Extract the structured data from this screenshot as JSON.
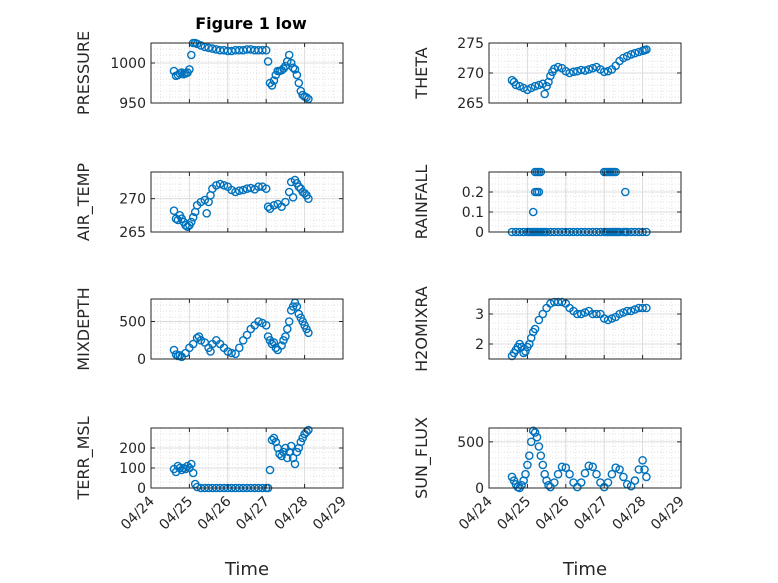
{
  "figure_title": "Figure 1 low",
  "marker_color": "#0072BD",
  "grid": true,
  "chart_data": [
    {
      "type": "scatter",
      "title": "Figure 1 low",
      "ylabel": "PRESSURE",
      "ylim": [
        950,
        1025
      ],
      "yticks": [
        950,
        1000
      ],
      "xlim": [
        0,
        5
      ],
      "xtick_labels": [
        "04/24",
        "04/25",
        "04/26",
        "04/27",
        "04/28",
        "04/29"
      ],
      "x": [
        0.6,
        0.65,
        0.7,
        0.75,
        0.8,
        0.85,
        0.9,
        0.95,
        1.0,
        1.05,
        1.1,
        1.15,
        1.2,
        1.3,
        1.4,
        1.5,
        1.6,
        1.7,
        1.8,
        1.9,
        2.0,
        2.1,
        2.2,
        2.3,
        2.4,
        2.5,
        2.6,
        2.7,
        2.8,
        2.9,
        3.0,
        3.05,
        3.1,
        3.15,
        3.2,
        3.25,
        3.3,
        3.35,
        3.4,
        3.45,
        3.5,
        3.55,
        3.6,
        3.65,
        3.7,
        3.75,
        3.8,
        3.85,
        3.9,
        3.95,
        4.0,
        4.05,
        4.1
      ],
      "y": [
        990,
        984,
        985,
        987,
        988,
        986,
        987,
        988,
        992,
        1010,
        1025,
        1025,
        1024,
        1022,
        1020,
        1019,
        1018,
        1017,
        1016,
        1016,
        1015,
        1015,
        1016,
        1016,
        1016,
        1017,
        1017,
        1016,
        1016,
        1016,
        1016,
        1002,
        975,
        972,
        978,
        985,
        990,
        990,
        991,
        993,
        996,
        1002,
        1010,
        1000,
        994,
        992,
        985,
        975,
        965,
        960,
        958,
        957,
        955
      ]
    },
    {
      "type": "scatter",
      "ylabel": "THETA",
      "ylim": [
        265,
        275
      ],
      "yticks": [
        265,
        270,
        275
      ],
      "xlim": [
        0,
        5
      ],
      "xtick_labels": [
        "04/24",
        "04/25",
        "04/26",
        "04/27",
        "04/28",
        "04/29"
      ],
      "x": [
        0.6,
        0.65,
        0.7,
        0.8,
        0.9,
        1.0,
        1.1,
        1.2,
        1.3,
        1.4,
        1.45,
        1.5,
        1.55,
        1.6,
        1.65,
        1.7,
        1.8,
        1.9,
        2.0,
        2.1,
        2.2,
        2.3,
        2.4,
        2.5,
        2.6,
        2.7,
        2.8,
        2.9,
        3.0,
        3.1,
        3.2,
        3.3,
        3.4,
        3.5,
        3.6,
        3.7,
        3.8,
        3.9,
        4.0,
        4.05,
        4.1
      ],
      "y": [
        268.8,
        268.5,
        268.0,
        267.8,
        267.5,
        267.2,
        267.5,
        267.8,
        268.0,
        268.2,
        266.5,
        267.8,
        268.5,
        269.5,
        270.2,
        270.7,
        271.0,
        270.8,
        270.3,
        270.0,
        270.2,
        270.3,
        270.5,
        270.4,
        270.6,
        270.8,
        271.0,
        270.6,
        270.2,
        270.3,
        270.6,
        271.2,
        272.0,
        272.5,
        272.8,
        273.1,
        273.3,
        273.5,
        273.7,
        273.8,
        273.9
      ]
    },
    {
      "type": "scatter",
      "ylabel": "AIR_TEMP",
      "ylim": [
        265,
        274
      ],
      "yticks": [
        265,
        270
      ],
      "xlim": [
        0,
        5
      ],
      "xtick_labels": [
        "04/24",
        "04/25",
        "04/26",
        "04/27",
        "04/28",
        "04/29"
      ],
      "x": [
        0.6,
        0.65,
        0.7,
        0.75,
        0.8,
        0.85,
        0.9,
        0.95,
        1.0,
        1.05,
        1.1,
        1.15,
        1.2,
        1.3,
        1.4,
        1.45,
        1.5,
        1.55,
        1.6,
        1.7,
        1.8,
        1.9,
        2.0,
        2.1,
        2.2,
        2.3,
        2.4,
        2.5,
        2.6,
        2.7,
        2.8,
        2.9,
        3.0,
        3.05,
        3.1,
        3.2,
        3.3,
        3.4,
        3.5,
        3.6,
        3.65,
        3.7,
        3.75,
        3.8,
        3.85,
        3.9,
        3.95,
        4.0,
        4.05,
        4.1
      ],
      "y": [
        268.2,
        267.0,
        266.8,
        267.5,
        267.0,
        266.5,
        266.0,
        265.8,
        266.0,
        266.5,
        267.2,
        268.0,
        269.0,
        269.5,
        269.8,
        267.8,
        269.5,
        270.5,
        271.5,
        272.0,
        272.2,
        272.0,
        271.8,
        271.3,
        271.0,
        271.2,
        271.3,
        271.5,
        271.6,
        271.4,
        271.8,
        271.8,
        271.5,
        268.8,
        268.5,
        269.0,
        269.2,
        268.8,
        269.5,
        271.0,
        272.5,
        270.2,
        272.8,
        272.3,
        271.8,
        271.5,
        271.0,
        270.8,
        270.5,
        270.0
      ]
    },
    {
      "type": "scatter",
      "ylabel": "RAINFALL",
      "ylim": [
        0,
        0.3
      ],
      "yticks": [
        0,
        0.1,
        0.2
      ],
      "xlim": [
        0,
        5
      ],
      "xtick_labels": [
        "04/24",
        "04/25",
        "04/26",
        "04/27",
        "04/28",
        "04/29"
      ],
      "x": [
        0.6,
        0.7,
        0.8,
        0.9,
        1.0,
        1.05,
        1.1,
        1.15,
        1.2,
        1.25,
        1.3,
        1.35,
        1.4,
        1.45,
        1.5,
        1.6,
        1.7,
        1.8,
        1.9,
        2.0,
        2.1,
        2.2,
        2.3,
        2.4,
        2.5,
        2.6,
        2.7,
        2.8,
        2.9,
        3.0,
        3.05,
        3.1,
        3.15,
        3.2,
        3.25,
        3.3,
        3.35,
        3.4,
        3.5,
        3.55,
        3.6,
        3.7,
        3.8,
        3.9,
        4.0,
        4.1,
        1.15,
        1.2,
        1.25,
        1.3,
        1.2,
        1.25,
        1.3,
        1.35,
        3.0,
        3.05,
        3.1,
        3.15,
        3.2,
        3.25,
        3.3,
        3.55
      ],
      "y": [
        0,
        0,
        0,
        0,
        0,
        0,
        0,
        0,
        0,
        0,
        0,
        0,
        0,
        0,
        0,
        0,
        0,
        0,
        0,
        0,
        0,
        0,
        0,
        0,
        0,
        0,
        0,
        0,
        0,
        0,
        0,
        0,
        0,
        0,
        0,
        0,
        0,
        0,
        0,
        0,
        0,
        0,
        0,
        0,
        0,
        0,
        0.1,
        0.2,
        0.2,
        0.2,
        0.3,
        0.3,
        0.3,
        0.3,
        0.3,
        0.3,
        0.3,
        0.3,
        0.3,
        0.3,
        0.3,
        0.2
      ]
    },
    {
      "type": "scatter",
      "ylabel": "MIXDEPTH",
      "ylim": [
        0,
        800
      ],
      "yticks": [
        0,
        500
      ],
      "xlim": [
        0,
        5
      ],
      "xtick_labels": [
        "04/24",
        "04/25",
        "04/26",
        "04/27",
        "04/28",
        "04/29"
      ],
      "x": [
        0.6,
        0.65,
        0.7,
        0.75,
        0.8,
        0.9,
        1.0,
        1.1,
        1.2,
        1.25,
        1.3,
        1.4,
        1.5,
        1.55,
        1.6,
        1.7,
        1.8,
        1.9,
        2.0,
        2.1,
        2.2,
        2.3,
        2.4,
        2.5,
        2.6,
        2.7,
        2.8,
        2.9,
        3.0,
        3.05,
        3.1,
        3.15,
        3.2,
        3.25,
        3.3,
        3.4,
        3.45,
        3.5,
        3.55,
        3.6,
        3.65,
        3.7,
        3.75,
        3.8,
        3.85,
        3.9,
        3.95,
        4.0,
        4.05,
        4.1
      ],
      "y": [
        120,
        60,
        40,
        50,
        30,
        80,
        150,
        200,
        280,
        300,
        250,
        220,
        150,
        100,
        200,
        250,
        200,
        150,
        100,
        80,
        70,
        150,
        250,
        320,
        400,
        450,
        500,
        480,
        450,
        300,
        250,
        200,
        220,
        150,
        120,
        180,
        250,
        300,
        400,
        500,
        650,
        700,
        750,
        700,
        600,
        550,
        500,
        450,
        400,
        350
      ]
    },
    {
      "type": "scatter",
      "ylabel": "H2OMIXRA",
      "ylim": [
        1.5,
        3.5
      ],
      "yticks": [
        2,
        3
      ],
      "xlim": [
        0,
        5
      ],
      "xtick_labels": [
        "04/24",
        "04/25",
        "04/26",
        "04/27",
        "04/28",
        "04/29"
      ],
      "x": [
        0.6,
        0.65,
        0.7,
        0.75,
        0.8,
        0.85,
        0.9,
        0.95,
        1.0,
        1.05,
        1.1,
        1.15,
        1.2,
        1.3,
        1.4,
        1.5,
        1.6,
        1.7,
        1.8,
        1.9,
        2.0,
        2.1,
        2.2,
        2.3,
        2.4,
        2.5,
        2.6,
        2.7,
        2.8,
        2.9,
        3.0,
        3.1,
        3.2,
        3.3,
        3.4,
        3.5,
        3.6,
        3.7,
        3.8,
        3.9,
        4.0,
        4.1
      ],
      "y": [
        1.6,
        1.7,
        1.8,
        1.9,
        2.0,
        1.9,
        1.7,
        1.75,
        1.9,
        2.0,
        2.2,
        2.4,
        2.5,
        2.8,
        3.0,
        3.2,
        3.35,
        3.4,
        3.4,
        3.4,
        3.35,
        3.2,
        3.1,
        3.0,
        3.0,
        3.05,
        3.1,
        3.0,
        3.0,
        3.0,
        2.85,
        2.8,
        2.85,
        2.9,
        3.0,
        3.05,
        3.1,
        3.1,
        3.15,
        3.2,
        3.2,
        3.2
      ]
    },
    {
      "type": "scatter",
      "ylabel": "TERR_MSL",
      "ylim": [
        0,
        300
      ],
      "yticks": [
        0,
        100,
        200
      ],
      "xlim": [
        0,
        5
      ],
      "xtick_labels": [
        "04/24",
        "04/25",
        "04/26",
        "04/27",
        "04/28",
        "04/29"
      ],
      "x": [
        0.6,
        0.65,
        0.7,
        0.75,
        0.8,
        0.85,
        0.9,
        0.95,
        1.0,
        1.05,
        1.1,
        1.15,
        1.2,
        1.3,
        1.4,
        1.5,
        1.6,
        1.7,
        1.8,
        1.9,
        2.0,
        2.1,
        2.2,
        2.3,
        2.4,
        2.5,
        2.6,
        2.7,
        2.8,
        2.9,
        3.0,
        3.05,
        3.1,
        3.15,
        3.2,
        3.25,
        3.3,
        3.35,
        3.4,
        3.45,
        3.5,
        3.55,
        3.6,
        3.65,
        3.7,
        3.75,
        3.8,
        3.85,
        3.9,
        3.95,
        4.0,
        4.05,
        4.1
      ],
      "y": [
        95,
        80,
        110,
        100,
        90,
        100,
        95,
        110,
        100,
        120,
        75,
        20,
        5,
        0,
        0,
        0,
        0,
        0,
        0,
        0,
        0,
        0,
        0,
        0,
        0,
        0,
        0,
        0,
        0,
        0,
        0,
        0,
        90,
        240,
        250,
        230,
        200,
        170,
        160,
        180,
        200,
        150,
        180,
        210,
        150,
        120,
        180,
        200,
        230,
        250,
        270,
        280,
        290
      ]
    },
    {
      "type": "scatter",
      "ylabel": "SUN_FLUX",
      "ylim": [
        0,
        650
      ],
      "yticks": [
        0,
        500
      ],
      "xlim": [
        0,
        5
      ],
      "xtick_labels": [
        "04/24",
        "04/25",
        "04/26",
        "04/27",
        "04/28",
        "04/29"
      ],
      "x": [
        0.6,
        0.65,
        0.7,
        0.75,
        0.8,
        0.85,
        0.9,
        0.95,
        1.0,
        1.05,
        1.1,
        1.15,
        1.2,
        1.25,
        1.3,
        1.35,
        1.4,
        1.45,
        1.5,
        1.55,
        1.6,
        1.7,
        1.8,
        1.9,
        2.0,
        2.1,
        2.2,
        2.3,
        2.4,
        2.5,
        2.6,
        2.7,
        2.8,
        2.9,
        3.0,
        3.1,
        3.2,
        3.3,
        3.4,
        3.5,
        3.6,
        3.7,
        3.8,
        3.9,
        4.0,
        4.05,
        4.1
      ],
      "y": [
        120,
        80,
        40,
        10,
        0,
        30,
        80,
        150,
        250,
        350,
        500,
        620,
        600,
        550,
        450,
        350,
        250,
        150,
        80,
        30,
        10,
        60,
        150,
        230,
        220,
        150,
        60,
        10,
        60,
        160,
        240,
        230,
        150,
        60,
        10,
        60,
        150,
        220,
        200,
        120,
        40,
        20,
        80,
        200,
        300,
        200,
        120
      ]
    }
  ],
  "xlabel": "Time"
}
